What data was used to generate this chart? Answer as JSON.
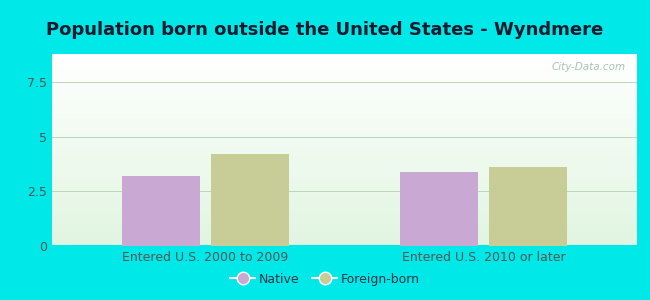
{
  "title": "Population born outside the United States - Wyndmere",
  "groups": [
    "Entered U.S. 2000 to 2009",
    "Entered U.S. 2010 or later"
  ],
  "native_values": [
    3.2,
    3.4
  ],
  "foreign_values": [
    4.2,
    3.6
  ],
  "native_color": "#c9a8d4",
  "foreign_color": "#c8cc96",
  "background_color": "#00e8e8",
  "ylim": [
    0,
    8.8
  ],
  "yticks": [
    0,
    2.5,
    5,
    7.5
  ],
  "bar_width": 0.28,
  "legend_native": "Native",
  "legend_foreign": "Foreign-born",
  "watermark": "City-Data.com",
  "title_fontsize": 13,
  "tick_fontsize": 9,
  "legend_fontsize": 9,
  "group_centers": [
    0.5,
    1.5
  ]
}
